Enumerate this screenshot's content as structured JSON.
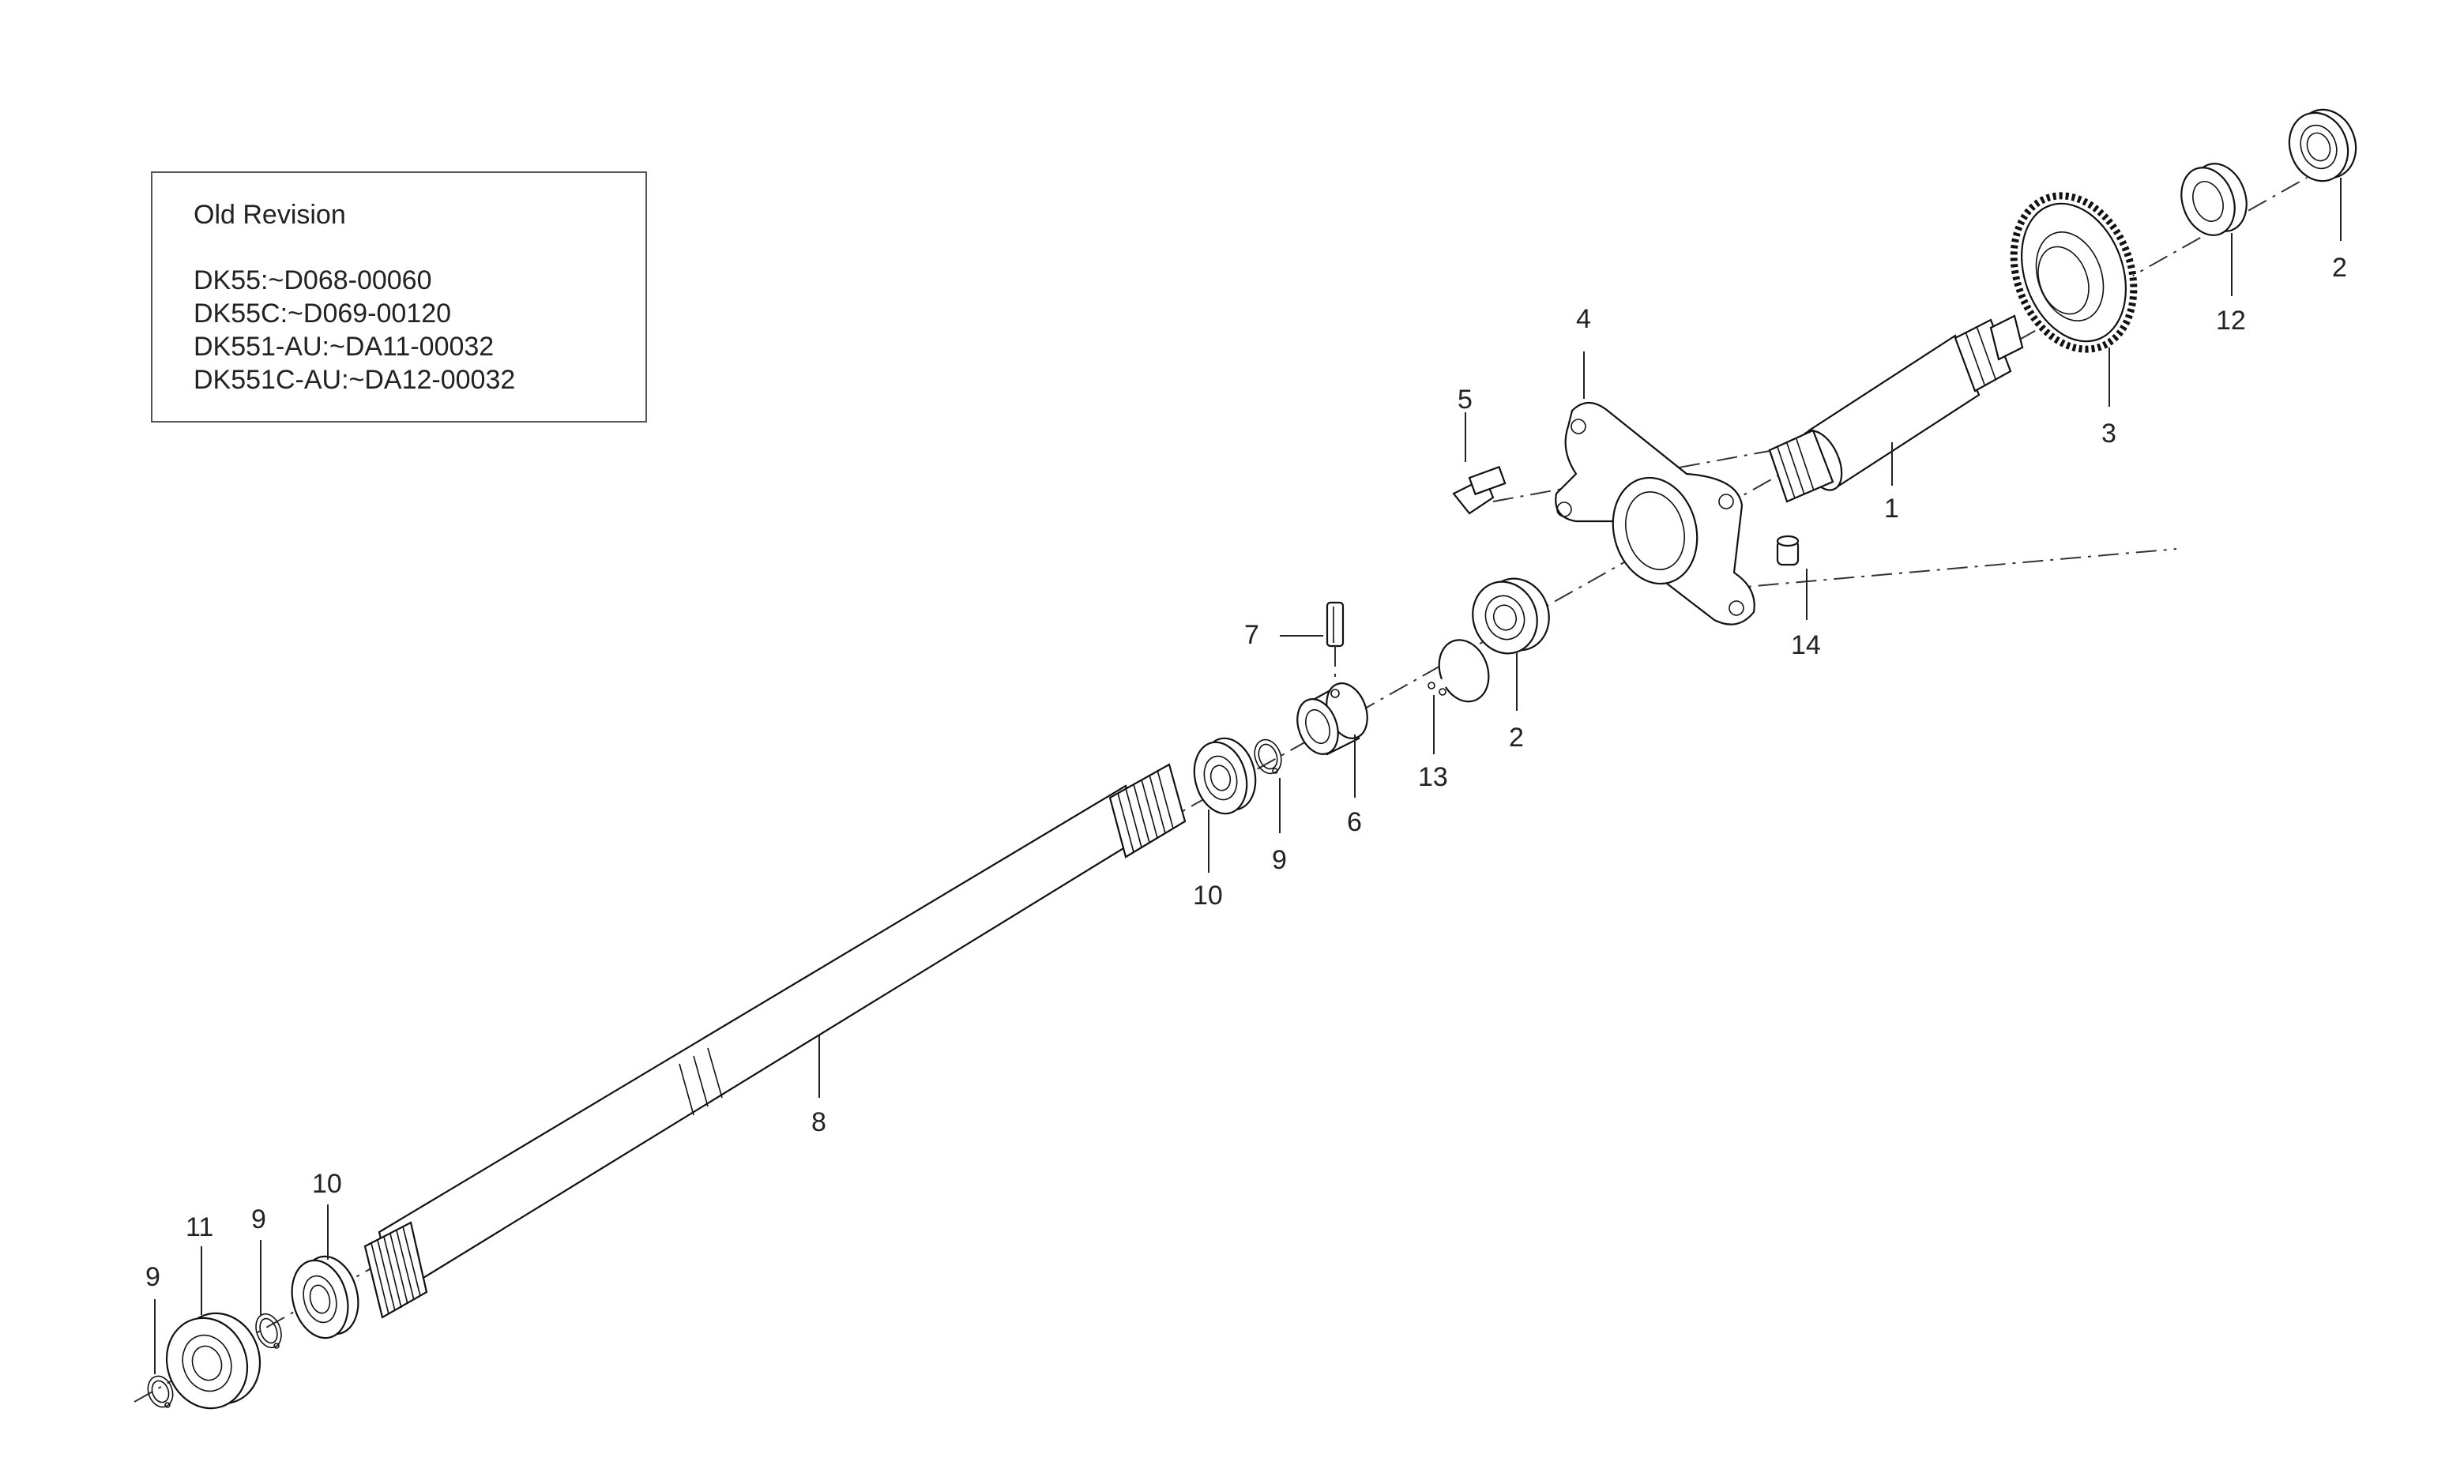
{
  "revision_note": {
    "title": "Old Revision",
    "lines": [
      "DK55:~D068-00060",
      "DK55C:~D069-00120",
      "DK551-AU:~DA11-00032",
      "DK551C-AU:~DA12-00032"
    ]
  },
  "callouts": [
    {
      "id": "c1",
      "label": "1"
    },
    {
      "id": "c2a",
      "label": "2"
    },
    {
      "id": "c2b",
      "label": "2"
    },
    {
      "id": "c3",
      "label": "3"
    },
    {
      "id": "c4",
      "label": "4"
    },
    {
      "id": "c5",
      "label": "5"
    },
    {
      "id": "c6",
      "label": "6"
    },
    {
      "id": "c7",
      "label": "7"
    },
    {
      "id": "c8",
      "label": "8"
    },
    {
      "id": "c9a",
      "label": "9"
    },
    {
      "id": "c9b",
      "label": "9"
    },
    {
      "id": "c9c",
      "label": "9"
    },
    {
      "id": "c10a",
      "label": "10"
    },
    {
      "id": "c10b",
      "label": "10"
    },
    {
      "id": "c11",
      "label": "11"
    },
    {
      "id": "c12",
      "label": "12"
    },
    {
      "id": "c13",
      "label": "13"
    },
    {
      "id": "c14",
      "label": "14"
    }
  ],
  "parts": [
    {
      "callout": "1",
      "icon": "spline-shaft-icon"
    },
    {
      "callout": "2",
      "icon": "ball-bearing-icon"
    },
    {
      "callout": "3",
      "icon": "spur-gear-icon"
    },
    {
      "callout": "4",
      "icon": "bearing-housing-flange-icon"
    },
    {
      "callout": "5",
      "icon": "bolt-icon"
    },
    {
      "callout": "6",
      "icon": "coupling-sleeve-icon"
    },
    {
      "callout": "7",
      "icon": "spring-pin-icon"
    },
    {
      "callout": "8",
      "icon": "long-shaft-icon"
    },
    {
      "callout": "9",
      "icon": "snap-ring-icon"
    },
    {
      "callout": "10",
      "icon": "ball-bearing-icon"
    },
    {
      "callout": "11",
      "icon": "ball-bearing-icon"
    },
    {
      "callout": "12",
      "icon": "collar-icon"
    },
    {
      "callout": "13",
      "icon": "internal-snap-ring-icon"
    },
    {
      "callout": "14",
      "icon": "dowel-pin-icon"
    }
  ]
}
